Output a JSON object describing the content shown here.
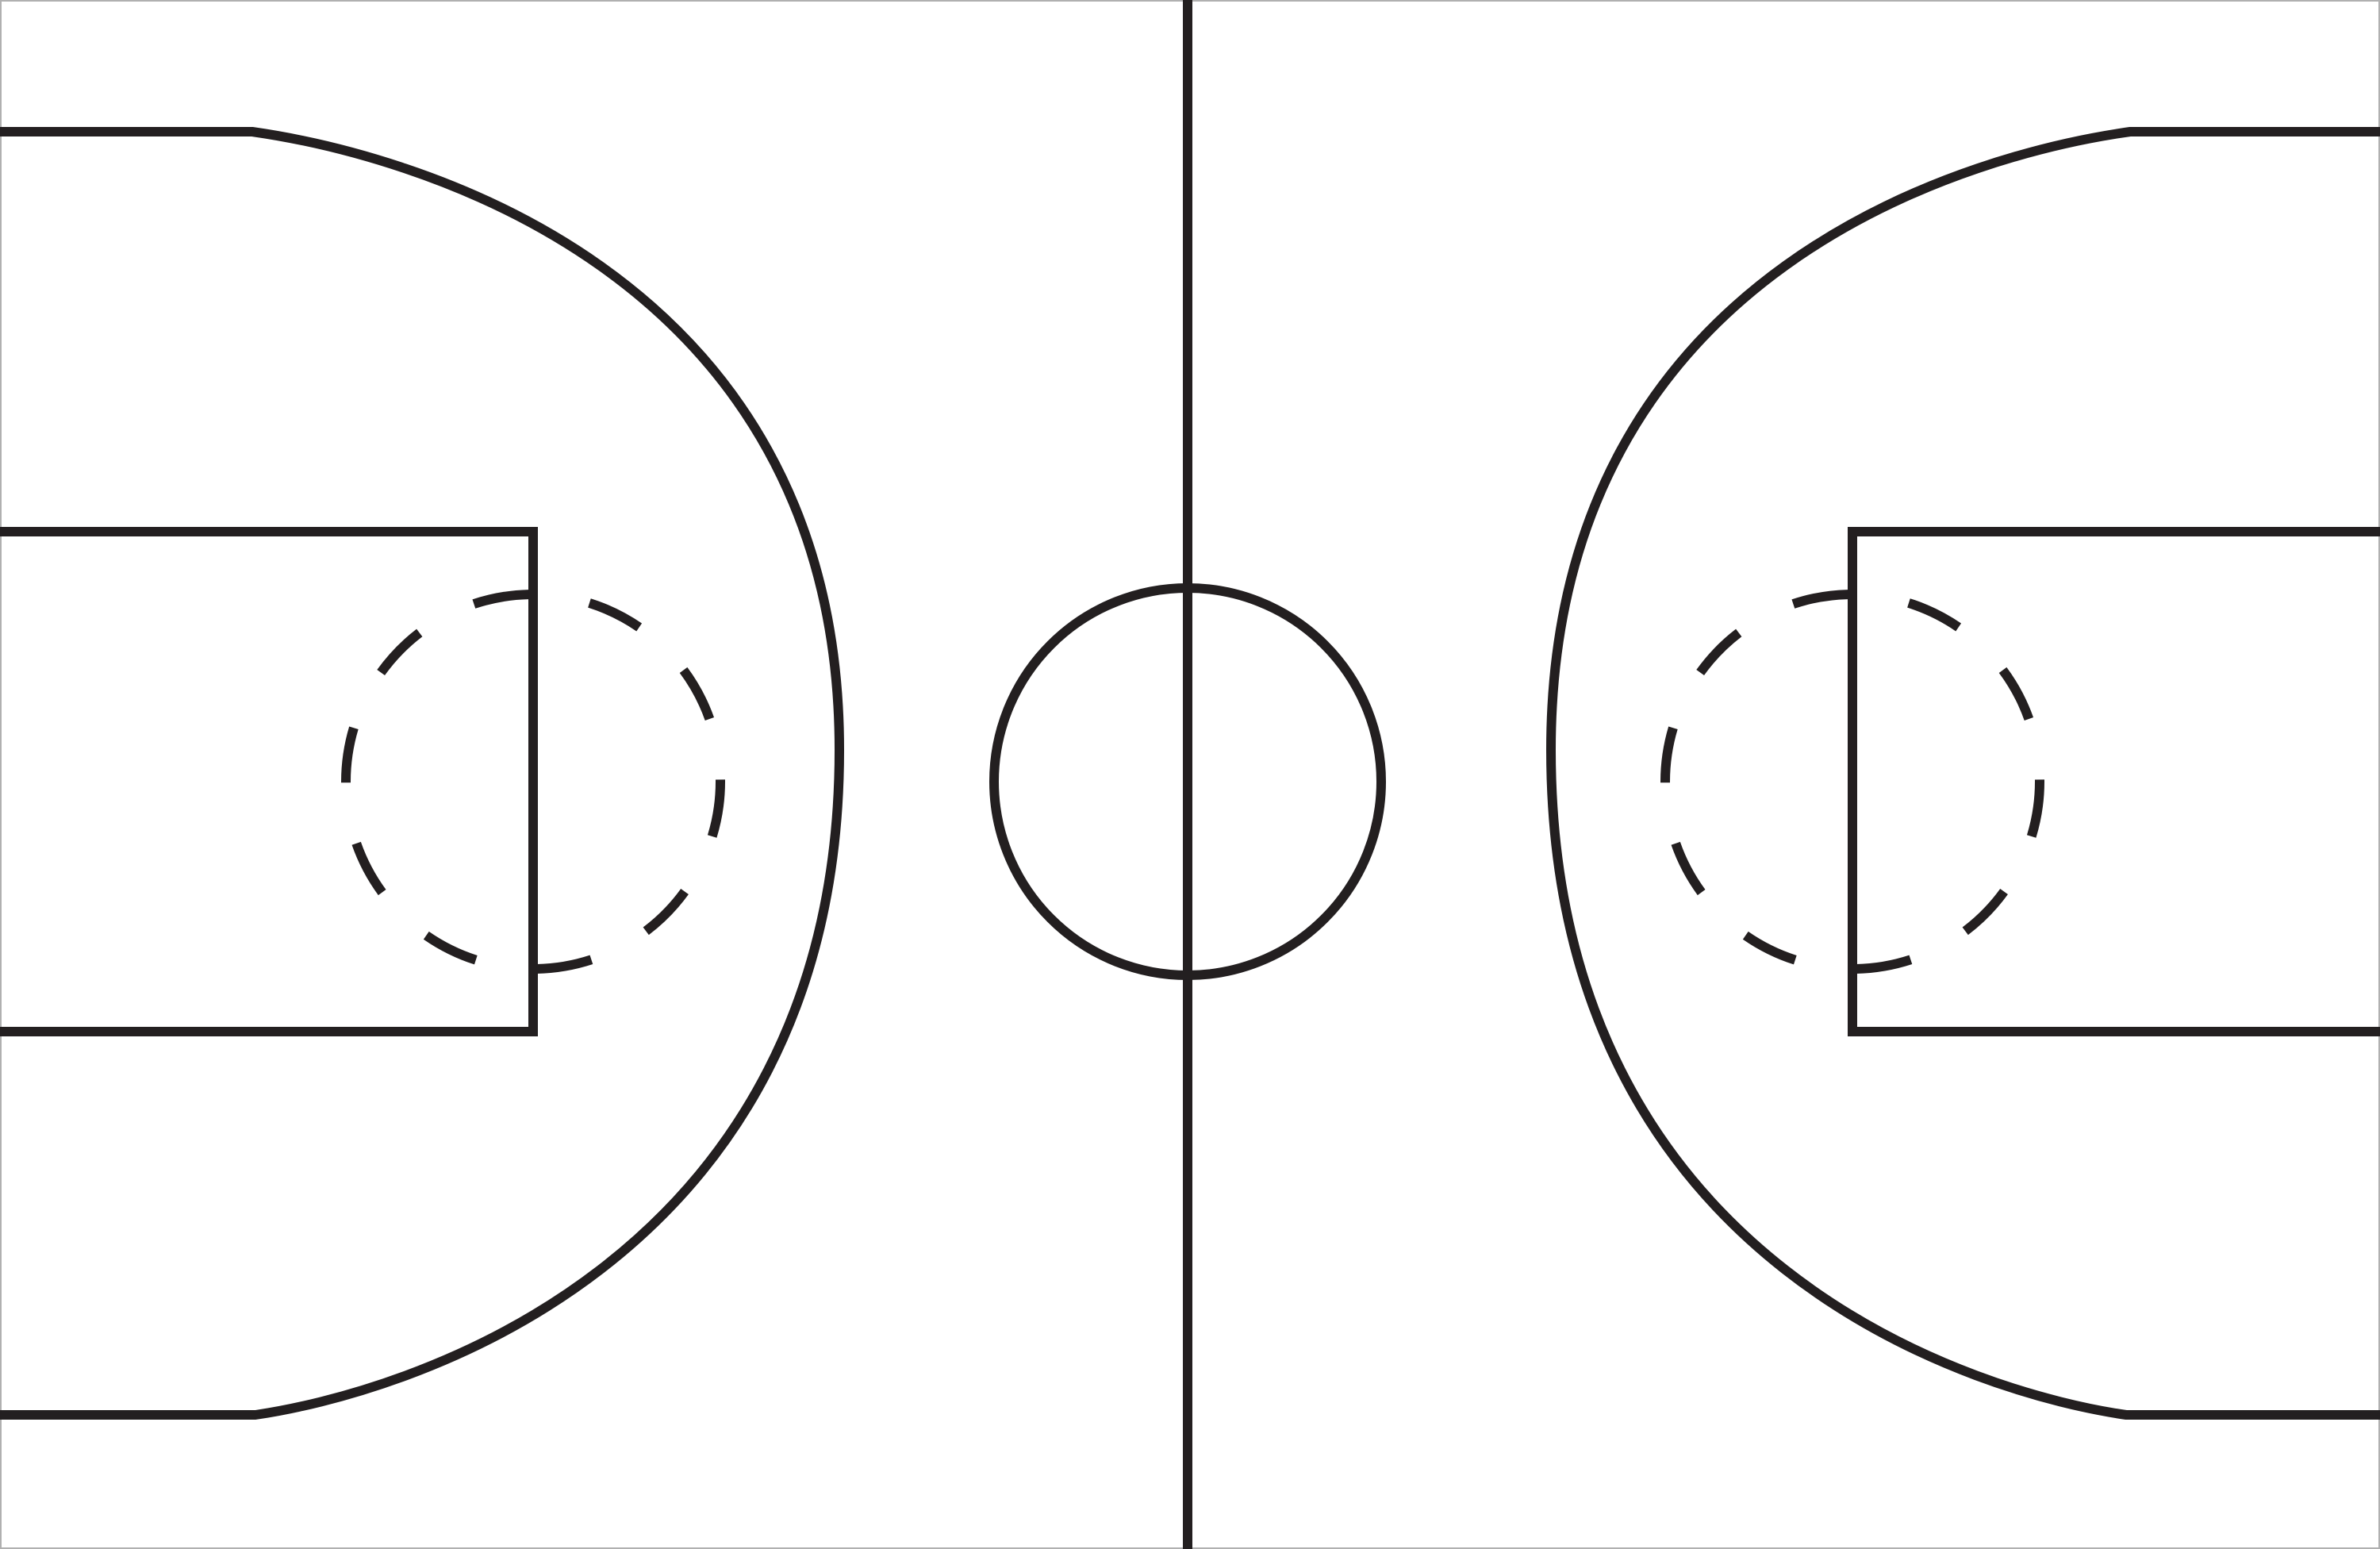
{
  "diagram": {
    "subject": "basketball-court",
    "colors": {
      "line": "#231f20",
      "background": "#ffffff",
      "border": "#b0b0b0"
    }
  }
}
